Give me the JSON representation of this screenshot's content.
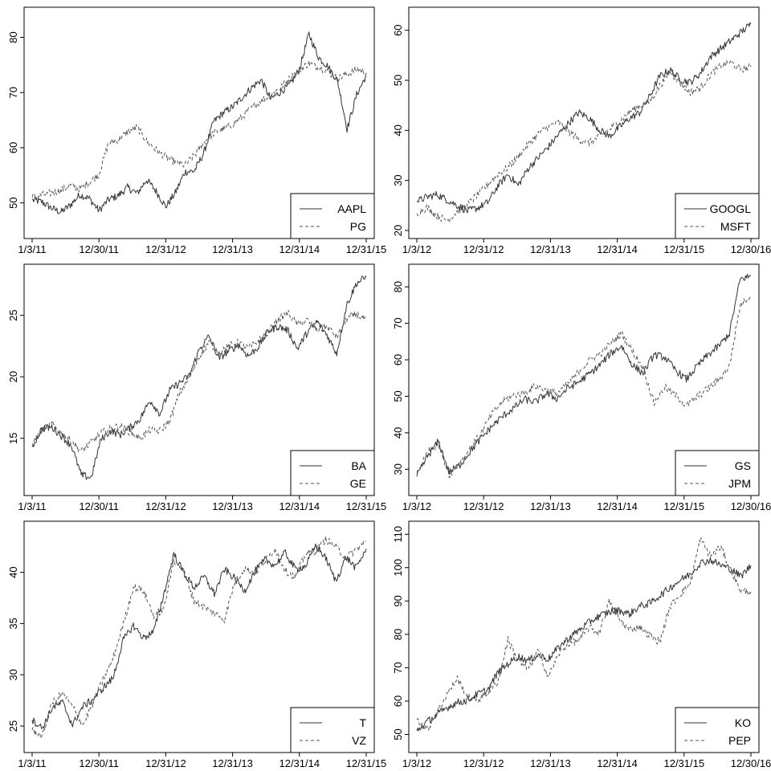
{
  "chart_data": [
    {
      "type": "line",
      "x_ticks": [
        "1/3/11",
        "12/30/11",
        "12/31/12",
        "12/31/13",
        "12/31/14",
        "12/31/15"
      ],
      "y_ticks": [
        50,
        60,
        70,
        80
      ],
      "ylim": [
        45,
        84
      ],
      "legend_position": "bottom-right",
      "series": [
        {
          "name": "AAPL",
          "style": "solid",
          "color": "#333333",
          "values": [
            50.5,
            50.2,
            49.1,
            48.3,
            49.6,
            51.5,
            50.8,
            48.6,
            50.6,
            51.3,
            52.8,
            51.7,
            54.2,
            52.1,
            49.3,
            51.8,
            55.6,
            55.8,
            59.1,
            64.7,
            66.3,
            67.4,
            69.1,
            70.9,
            72.3,
            68.8,
            70.1,
            71.4,
            74.2,
            80.6,
            76.4,
            74.7,
            72.1,
            63.4,
            69.6,
            73.1
          ]
        },
        {
          "name": "PG",
          "style": "dashed",
          "color": "#555555",
          "values": [
            51.0,
            51.4,
            51.8,
            52.3,
            53.1,
            52.6,
            53.8,
            55.2,
            60.8,
            61.4,
            62.9,
            63.7,
            61.2,
            59.6,
            58.3,
            57.4,
            56.8,
            58.6,
            61.0,
            62.6,
            63.4,
            64.1,
            65.6,
            67.3,
            68.5,
            69.7,
            70.8,
            72.6,
            74.1,
            75.3,
            74.6,
            73.8,
            72.5,
            73.4,
            74.2,
            73.6
          ]
        }
      ]
    },
    {
      "type": "line",
      "x_ticks": [
        "1/3/12",
        "12/31/12",
        "12/31/13",
        "12/31/14",
        "12/31/15",
        "12/30/16"
      ],
      "y_ticks": [
        20,
        30,
        40,
        50,
        60
      ],
      "ylim": [
        20,
        63
      ],
      "legend_position": "bottom-right",
      "series": [
        {
          "name": "GOOGL",
          "style": "solid",
          "color": "#333333",
          "values": [
            25.8,
            26.7,
            27.2,
            26.1,
            25.0,
            23.9,
            24.5,
            25.6,
            28.9,
            31.2,
            29.0,
            32.4,
            34.6,
            36.7,
            39.2,
            41.5,
            43.6,
            42.5,
            40.2,
            38.8,
            40.6,
            42.4,
            43.5,
            46.8,
            50.8,
            52.1,
            50.2,
            49.6,
            51.4,
            54.7,
            56.3,
            57.9,
            59.6,
            61.2
          ]
        },
        {
          "name": "MSFT",
          "style": "dashed",
          "color": "#555555",
          "values": [
            23.4,
            24.6,
            22.9,
            22.0,
            23.8,
            25.1,
            27.2,
            29.1,
            31.3,
            32.6,
            34.8,
            37.2,
            39.3,
            40.8,
            41.6,
            39.8,
            38.2,
            37.5,
            38.7,
            40.2,
            41.8,
            43.6,
            44.9,
            45.7,
            48.9,
            51.8,
            49.5,
            47.6,
            48.4,
            51.2,
            52.9,
            53.6,
            52.2,
            52.7
          ]
        }
      ]
    },
    {
      "type": "line",
      "x_ticks": [
        "1/3/11",
        "12/30/11",
        "12/31/12",
        "12/31/13",
        "12/31/14",
        "12/31/15"
      ],
      "y_ticks": [
        15,
        20,
        25
      ],
      "ylim": [
        11,
        28.5
      ],
      "legend_position": "bottom-right",
      "series": [
        {
          "name": "BA",
          "style": "solid",
          "color": "#333333",
          "values": [
            14.3,
            15.8,
            15.9,
            15.2,
            14.4,
            12.0,
            11.8,
            14.9,
            15.6,
            15.3,
            15.9,
            16.6,
            18.1,
            17.0,
            18.9,
            19.5,
            20.1,
            22.2,
            23.3,
            21.5,
            22.1,
            22.6,
            21.7,
            22.4,
            23.7,
            24.1,
            23.8,
            22.3,
            23.6,
            24.5,
            23.4,
            21.9,
            25.8,
            27.6,
            28.1
          ]
        },
        {
          "name": "GE",
          "style": "dashed",
          "color": "#555555",
          "values": [
            14.6,
            15.6,
            16.2,
            15.4,
            14.8,
            13.9,
            14.7,
            15.4,
            15.8,
            16.0,
            15.5,
            15.0,
            15.7,
            15.6,
            16.4,
            18.7,
            19.9,
            21.6,
            22.8,
            22.0,
            22.5,
            22.8,
            22.3,
            22.9,
            23.6,
            24.6,
            25.2,
            24.3,
            24.6,
            23.8,
            24.1,
            23.2,
            24.7,
            25.1,
            24.6
          ]
        }
      ]
    },
    {
      "type": "line",
      "x_ticks": [
        "1/3/12",
        "12/31/12",
        "12/31/13",
        "12/31/14",
        "12/31/15",
        "12/30/16"
      ],
      "y_ticks": [
        30,
        40,
        50,
        60,
        70,
        80
      ],
      "ylim": [
        25,
        84
      ],
      "legend_position": "bottom-right",
      "series": [
        {
          "name": "GS",
          "style": "solid",
          "color": "#333333",
          "values": [
            28.0,
            33.6,
            37.6,
            29.2,
            31.2,
            35.1,
            38.6,
            41.9,
            44.6,
            46.8,
            49.2,
            48.4,
            50.7,
            49.4,
            52.2,
            53.9,
            56.1,
            58.6,
            61.8,
            63.8,
            58.6,
            56.3,
            61.4,
            60.7,
            57.2,
            54.6,
            58.2,
            61.3,
            63.7,
            67.2,
            82.1,
            83.0
          ]
        },
        {
          "name": "JPM",
          "style": "dashed",
          "color": "#555555",
          "values": [
            29.0,
            34.8,
            37.0,
            28.6,
            31.6,
            35.9,
            40.1,
            45.2,
            48.7,
            50.3,
            51.0,
            52.9,
            51.6,
            50.8,
            53.3,
            56.7,
            59.9,
            61.6,
            64.5,
            67.2,
            62.4,
            57.8,
            48.1,
            52.5,
            50.3,
            47.4,
            49.8,
            52.1,
            54.5,
            58.2,
            74.9,
            77.8
          ]
        }
      ]
    },
    {
      "type": "line",
      "x_ticks": [
        "1/3/11",
        "12/30/11",
        "12/31/12",
        "12/31/13",
        "12/31/14",
        "12/31/15"
      ],
      "y_ticks": [
        25,
        30,
        35,
        40
      ],
      "ylim": [
        23.2,
        44.2
      ],
      "legend_position": "bottom-right",
      "series": [
        {
          "name": "T",
          "style": "solid",
          "color": "#333333",
          "values": [
            25.6,
            24.8,
            26.8,
            27.3,
            25.1,
            26.9,
            27.6,
            28.7,
            29.7,
            33.4,
            34.8,
            33.6,
            34.2,
            37.8,
            41.8,
            39.9,
            38.5,
            39.6,
            37.9,
            40.3,
            39.4,
            38.2,
            40.1,
            41.2,
            40.7,
            41.9,
            40.3,
            40.6,
            42.6,
            41.4,
            39.1,
            41.5,
            40.4,
            42.3
          ]
        },
        {
          "name": "VZ",
          "style": "dashed",
          "color": "#555555",
          "values": [
            24.6,
            24.0,
            27.3,
            28.2,
            26.9,
            25.1,
            27.2,
            29.5,
            31.6,
            34.9,
            38.6,
            38.2,
            35.8,
            36.4,
            41.2,
            40.1,
            37.2,
            36.6,
            36.0,
            35.4,
            39.0,
            40.4,
            39.9,
            41.1,
            42.3,
            40.2,
            39.5,
            41.8,
            42.1,
            43.2,
            42.5,
            41.4,
            42.2,
            43.0
          ]
        }
      ]
    },
    {
      "type": "line",
      "x_ticks": [
        "1/3/12",
        "12/31/12",
        "12/31/13",
        "12/31/14",
        "12/31/15",
        "12/30/16"
      ],
      "y_ticks": [
        50,
        60,
        70,
        80,
        90,
        100,
        110
      ],
      "ylim": [
        47,
        111.5
      ],
      "legend_position": "bottom-right",
      "series": [
        {
          "name": "KO",
          "style": "solid",
          "color": "#333333",
          "values": [
            51.1,
            53.8,
            55.9,
            58.1,
            59.6,
            60.2,
            62.1,
            63.4,
            68.5,
            71.2,
            73.4,
            72.1,
            73.8,
            72.6,
            76.1,
            78.9,
            81.2,
            83.6,
            85.5,
            86.7,
            87.2,
            86.1,
            88.4,
            89.3,
            91.6,
            94.0,
            96.2,
            98.1,
            101.4,
            102.3,
            100.8,
            99.6,
            97.4,
            100.6
          ]
        },
        {
          "name": "PEP",
          "style": "dashed",
          "color": "#555555",
          "values": [
            54.9,
            51.4,
            56.6,
            62.2,
            66.8,
            61.3,
            60.4,
            62.6,
            65.8,
            78.4,
            72.1,
            69.5,
            75.3,
            67.2,
            74.1,
            77.4,
            78.2,
            82.1,
            80.5,
            89.7,
            84.3,
            81.4,
            82.3,
            79.6,
            77.8,
            88.3,
            92.1,
            95.2,
            108.6,
            103.4,
            106.2,
            99.2,
            93.1,
            92.7
          ]
        }
      ]
    }
  ]
}
